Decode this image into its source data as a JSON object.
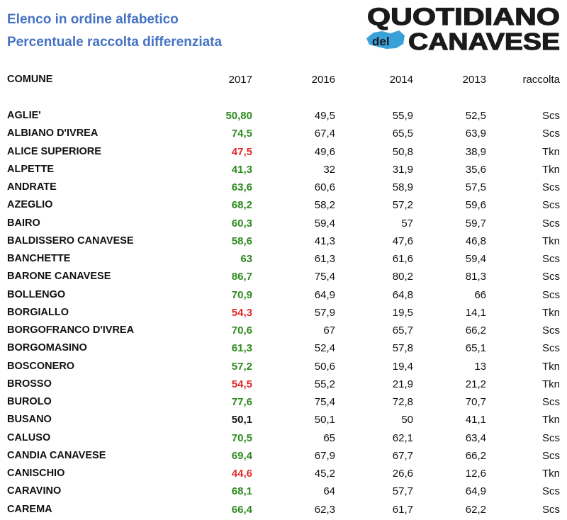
{
  "title_line1": "Elenco in ordine alfabetico",
  "title_line2": "Percentuale raccolta differenziata",
  "logo": {
    "text_top": "QUOTIDIANO",
    "text_del": "del",
    "text_bottom": "CANAVESE",
    "colors": {
      "text": "#1a1a1a",
      "map": "#3aa0d8"
    }
  },
  "columns": [
    "COMUNE",
    "2017",
    "2016",
    "2014",
    "2013",
    "raccolta"
  ],
  "colors": {
    "green": "#2e8b1f",
    "red": "#e02b2b",
    "black": "#111111",
    "title": "#4472c4"
  },
  "rows": [
    {
      "comune": "AGLIE'",
      "v2017": "50,80",
      "c2017": "green",
      "v2016": "49,5",
      "v2014": "55,9",
      "v2013": "52,5",
      "raccolta": "Scs"
    },
    {
      "comune": "ALBIANO D'IVREA",
      "v2017": "74,5",
      "c2017": "green",
      "v2016": "67,4",
      "v2014": "65,5",
      "v2013": "63,9",
      "raccolta": "Scs"
    },
    {
      "comune": "ALICE SUPERIORE",
      "v2017": "47,5",
      "c2017": "red",
      "v2016": "49,6",
      "v2014": "50,8",
      "v2013": "38,9",
      "raccolta": "Tkn"
    },
    {
      "comune": "ALPETTE",
      "v2017": "41,3",
      "c2017": "green",
      "v2016": "32",
      "v2014": "31,9",
      "v2013": "35,6",
      "raccolta": "Tkn"
    },
    {
      "comune": "ANDRATE",
      "v2017": "63,6",
      "c2017": "green",
      "v2016": "60,6",
      "v2014": "58,9",
      "v2013": "57,5",
      "raccolta": "Scs"
    },
    {
      "comune": "AZEGLIO",
      "v2017": "68,2",
      "c2017": "green",
      "v2016": "58,2",
      "v2014": "57,2",
      "v2013": "59,6",
      "raccolta": "Scs"
    },
    {
      "comune": "BAIRO",
      "v2017": "60,3",
      "c2017": "green",
      "v2016": "59,4",
      "v2014": "57",
      "v2013": "59,7",
      "raccolta": "Scs"
    },
    {
      "comune": "BALDISSERO CANAVESE",
      "v2017": "58,6",
      "c2017": "green",
      "v2016": "41,3",
      "v2014": "47,6",
      "v2013": "46,8",
      "raccolta": "Tkn"
    },
    {
      "comune": "BANCHETTE",
      "v2017": "63",
      "c2017": "green",
      "v2016": "61,3",
      "v2014": "61,6",
      "v2013": "59,4",
      "raccolta": "Scs"
    },
    {
      "comune": "BARONE CANAVESE",
      "v2017": "86,7",
      "c2017": "green",
      "v2016": "75,4",
      "v2014": "80,2",
      "v2013": "81,3",
      "raccolta": "Scs"
    },
    {
      "comune": "BOLLENGO",
      "v2017": "70,9",
      "c2017": "green",
      "v2016": "64,9",
      "v2014": "64,8",
      "v2013": "66",
      "raccolta": "Scs"
    },
    {
      "comune": "BORGIALLO",
      "v2017": "54,3",
      "c2017": "red",
      "v2016": "57,9",
      "v2014": "19,5",
      "v2013": "14,1",
      "raccolta": "Tkn"
    },
    {
      "comune": "BORGOFRANCO D'IVREA",
      "v2017": "70,6",
      "c2017": "green",
      "v2016": "67",
      "v2014": "65,7",
      "v2013": "66,2",
      "raccolta": "Scs"
    },
    {
      "comune": "BORGOMASINO",
      "v2017": "61,3",
      "c2017": "green",
      "v2016": "52,4",
      "v2014": "57,8",
      "v2013": "65,1",
      "raccolta": "Scs"
    },
    {
      "comune": "BOSCONERO",
      "v2017": "57,2",
      "c2017": "green",
      "v2016": "50,6",
      "v2014": "19,4",
      "v2013": "13",
      "raccolta": "Tkn"
    },
    {
      "comune": "BROSSO",
      "v2017": "54,5",
      "c2017": "red",
      "v2016": "55,2",
      "v2014": "21,9",
      "v2013": "21,2",
      "raccolta": "Tkn"
    },
    {
      "comune": "BUROLO",
      "v2017": "77,6",
      "c2017": "green",
      "v2016": "75,4",
      "v2014": "72,8",
      "v2013": "70,7",
      "raccolta": "Scs"
    },
    {
      "comune": "BUSANO",
      "v2017": "50,1",
      "c2017": "black",
      "v2016": "50,1",
      "v2014": "50",
      "v2013": "41,1",
      "raccolta": "Tkn"
    },
    {
      "comune": "CALUSO",
      "v2017": "70,5",
      "c2017": "green",
      "v2016": "65",
      "v2014": "62,1",
      "v2013": "63,4",
      "raccolta": "Scs"
    },
    {
      "comune": "CANDIA CANAVESE",
      "v2017": "69,4",
      "c2017": "green",
      "v2016": "67,9",
      "v2014": "67,7",
      "v2013": "66,2",
      "raccolta": "Scs"
    },
    {
      "comune": "CANISCHIO",
      "v2017": "44,6",
      "c2017": "red",
      "v2016": "45,2",
      "v2014": "26,6",
      "v2013": "12,6",
      "raccolta": "Tkn"
    },
    {
      "comune": "CARAVINO",
      "v2017": "68,1",
      "c2017": "green",
      "v2016": "64",
      "v2014": "57,7",
      "v2013": "64,9",
      "raccolta": "Scs"
    },
    {
      "comune": "CAREMA",
      "v2017": "66,4",
      "c2017": "green",
      "v2016": "62,3",
      "v2014": "61,7",
      "v2013": "62,2",
      "raccolta": "Scs"
    }
  ]
}
